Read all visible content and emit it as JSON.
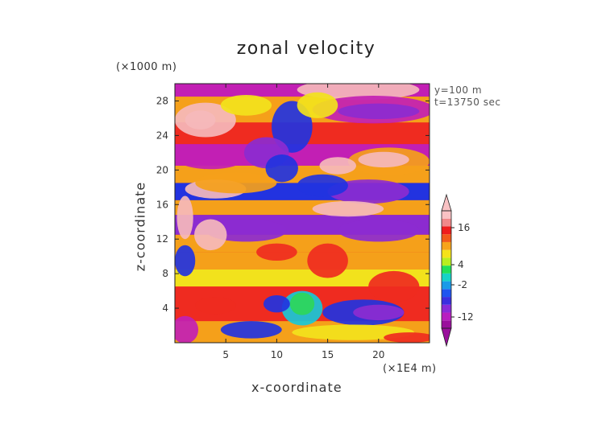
{
  "chart_data": {
    "type": "heatmap",
    "title": "zonal velocity",
    "xlabel": "x-coordinate",
    "ylabel": "z-coordinate",
    "x_unit": "(×1E4 m)",
    "y_unit": "(×1000 m)",
    "annotations": [
      "y=100 m",
      "t=13750 sec"
    ],
    "xlim": [
      0,
      25
    ],
    "ylim": [
      0,
      30
    ],
    "x_ticks": [
      5,
      10,
      15,
      20
    ],
    "y_ticks": [
      4,
      8,
      12,
      16,
      20,
      24,
      28
    ],
    "colorbar": {
      "tick_values": [
        16,
        4,
        -2,
        -12
      ],
      "colors": [
        "#9a109c",
        "#b81fc0",
        "#8a2bd8",
        "#3b2fe0",
        "#1f55f0",
        "#1a9ae8",
        "#16d2c8",
        "#20e05a",
        "#b8ee20",
        "#f5e21a",
        "#f7a41a",
        "#f25a1a",
        "#ee1d1d",
        "#f0888a",
        "#f9c2c4"
      ]
    },
    "palette": {
      "magenta": "#c21fb4",
      "purple": "#8c2bd0",
      "blue": "#2233e0",
      "cyan": "#18c8d8",
      "green": "#2ed65a",
      "yellow": "#f2e21c",
      "orange": "#f5a01a",
      "red": "#ef2b20",
      "pink": "#f5b8bb"
    }
  }
}
